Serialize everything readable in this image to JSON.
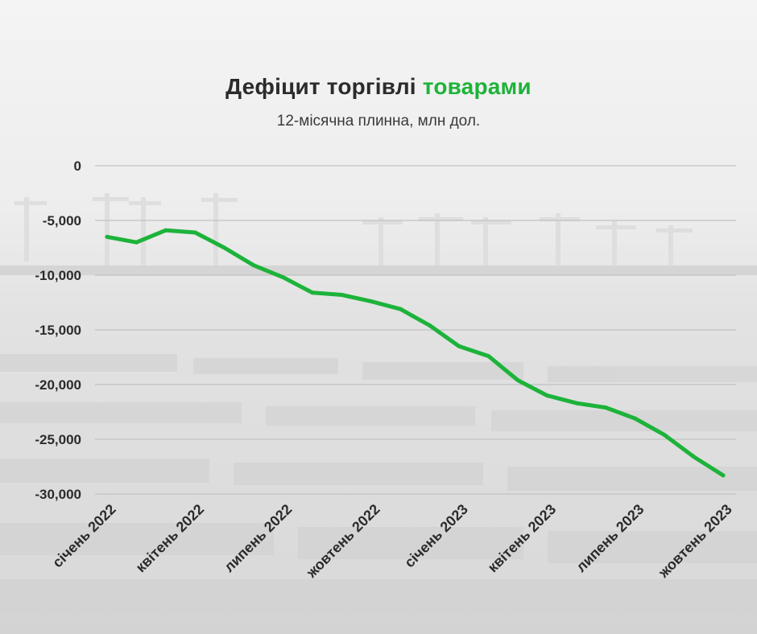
{
  "header": {
    "title_main": "Дефіцит торгівлі",
    "title_accent": "товарами",
    "subtitle": "12-місячна плинна, млн дол."
  },
  "colors": {
    "line": "#1db33a",
    "title_accent": "#1db33a",
    "grid": "#b9b9b9",
    "text": "#2b2b2b"
  },
  "chart_data": {
    "type": "line",
    "title": "Дефіцит торгівлі товарами",
    "subtitle": "12-місячна плинна, млн дол.",
    "xlabel": "",
    "ylabel": "",
    "ylim": [
      -30000,
      0
    ],
    "yticks": [
      0,
      -5000,
      -10000,
      -15000,
      -20000,
      -25000,
      -30000
    ],
    "ytick_labels": [
      "0",
      "-5,000",
      "-10,000",
      "-15,000",
      "-20,000",
      "-25,000",
      "-30,000"
    ],
    "x": [
      "2022-01",
      "2022-02",
      "2022-03",
      "2022-04",
      "2022-05",
      "2022-06",
      "2022-07",
      "2022-08",
      "2022-09",
      "2022-10",
      "2022-11",
      "2022-12",
      "2023-01",
      "2023-02",
      "2023-03",
      "2023-04",
      "2023-05",
      "2023-06",
      "2023-07",
      "2023-08",
      "2023-09",
      "2023-10"
    ],
    "xtick_labels": [
      "січень 2022",
      "квітень 2022",
      "липень 2022",
      "жовтень 2022",
      "січень 2023",
      "квітень 2023",
      "липень 2023",
      "жовтень 2023"
    ],
    "xtick_months": [
      "2022-01",
      "2022-04",
      "2022-07",
      "2022-10",
      "2023-01",
      "2023-04",
      "2023-07",
      "2023-10"
    ],
    "grid": true,
    "legend": "none",
    "series": [
      {
        "values": [
          -6500,
          -7000,
          -5900,
          -6100,
          -7500,
          -9100,
          -10200,
          -11600,
          -11800,
          -12400,
          -13100,
          -14600,
          -16500,
          -17400,
          -19600,
          -21000,
          -21700,
          -22100,
          -23100,
          -24600,
          -26600,
          -28300
        ]
      }
    ]
  }
}
